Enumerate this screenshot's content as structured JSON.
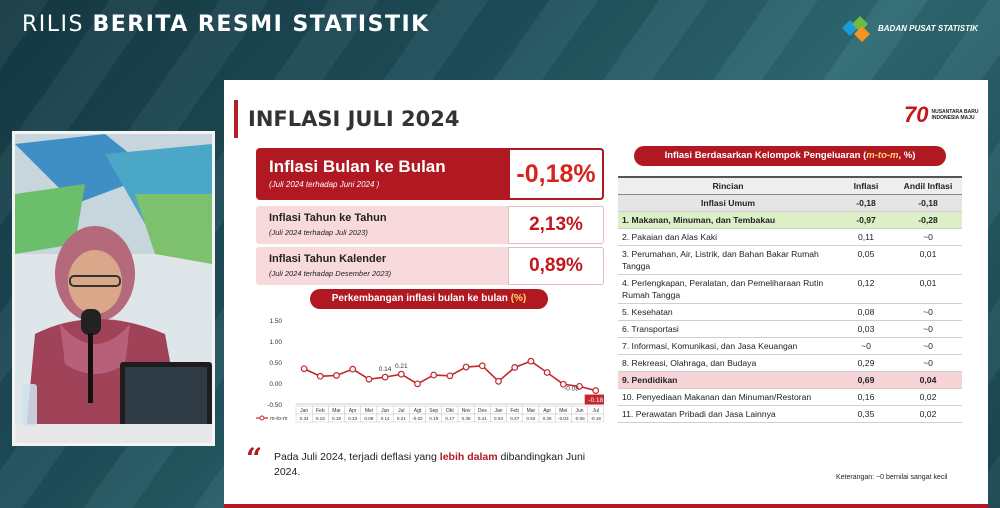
{
  "header": {
    "headline_light": "RILIS",
    "headline_bold": "BERITA RESMI STATISTIK",
    "agency": "BADAN PUSAT STATISTIK"
  },
  "slide": {
    "title": "INFLASI JULI 2024",
    "logo_number": "70",
    "logo_line1": "NUSANTARA BARU",
    "logo_line2": "INDONESIA MAJU",
    "mtom": {
      "title": "Inflasi Bulan ke Bulan",
      "subtitle": "(Juli 2024 terhadap Juni 2024 )",
      "value": "-0,18%"
    },
    "yony": {
      "title": "Inflasi Tahun ke Tahun",
      "subtitle": "(Juli 2024 terhadap Juli 2023)",
      "value": "2,13%"
    },
    "ytd": {
      "title": "Inflasi Tahun Kalender",
      "subtitle": "(Juli 2024 terhadap Desember 2023)",
      "value": "0,89%"
    },
    "chart_title_main": "Perkembangan inflasi bulan ke bulan",
    "chart_title_unit": "(%)",
    "note_pre": "Pada Juli 2024, terjadi deflasi yang ",
    "note_hl": "lebih dalam",
    "note_post": " dibandingkan Juni 2024.",
    "quote_mark": "“",
    "table_title_pre": "Inflasi Berdasarkan Kelompok Pengeluaran (",
    "table_title_hl": "m-to-m",
    "table_title_post": ", %)",
    "table_headers": [
      "Rincian",
      "Inflasi",
      "Andil Inflasi"
    ],
    "table_rows": [
      {
        "label": "Inflasi Umum",
        "inflasi": "-0,18",
        "andil": "-0,18",
        "style": "umum"
      },
      {
        "label": "1.  Makanan, Minuman, dan Tembakau",
        "inflasi": "-0,97",
        "andil": "-0,28",
        "style": "green"
      },
      {
        "label": "2.  Pakaian dan Alas Kaki",
        "inflasi": "0,11",
        "andil": "~0",
        "style": ""
      },
      {
        "label": "3.  Perumahan, Air, Listrik, dan Bahan Bakar Rumah Tangga",
        "inflasi": "0,05",
        "andil": "0,01",
        "style": ""
      },
      {
        "label": "4.  Perlengkapan, Peralatan, dan Pemeliharaan Rutin Rumah Tangga",
        "inflasi": "0,12",
        "andil": "0,01",
        "style": ""
      },
      {
        "label": "5.  Kesehatan",
        "inflasi": "0,08",
        "andil": "~0",
        "style": ""
      },
      {
        "label": "6.  Transportasi",
        "inflasi": "0,03",
        "andil": "~0",
        "style": ""
      },
      {
        "label": "7.  Informasi, Komunikasi, dan Jasa Keuangan",
        "inflasi": "~0",
        "andil": "~0",
        "style": ""
      },
      {
        "label": "8.  Rekreasi, Olahraga, dan Budaya",
        "inflasi": "0,29",
        "andil": "~0",
        "style": ""
      },
      {
        "label": "9.  Pendidikan",
        "inflasi": "0,69",
        "andil": "0,04",
        "style": "pink"
      },
      {
        "label": "10. Penyediaan Makanan dan Minuman/Restoran",
        "inflasi": "0,16",
        "andil": "0,02",
        "style": ""
      },
      {
        "label": "11. Perawatan Pribadi dan Jasa Lainnya",
        "inflasi": "0,35",
        "andil": "0,02",
        "style": ""
      }
    ],
    "footnote": "Keterangan: ~0 bernilai sangat kecil"
  },
  "chart_data": {
    "type": "line",
    "title": "Perkembangan inflasi bulan ke bulan (%)",
    "categories": [
      "Jan",
      "Feb",
      "Mar",
      "Apr",
      "Mei",
      "Jun",
      "Jul",
      "Agt",
      "Sep",
      "Okt",
      "Nov",
      "Des",
      "Jan",
      "Feb",
      "Mar",
      "Apr",
      "Mei",
      "Jun",
      "Jul"
    ],
    "series": [
      {
        "name": "m-to-m",
        "values": [
          0.34,
          0.16,
          0.18,
          0.33,
          0.09,
          0.14,
          0.21,
          -0.02,
          0.19,
          0.17,
          0.38,
          0.41,
          0.04,
          0.37,
          0.52,
          0.25,
          -0.03,
          -0.08,
          -0.18
        ]
      }
    ],
    "table_row": [
      "0.34",
      "0.16",
      "0.18",
      "0.33",
      "0.09",
      "0.14",
      "0.21",
      "-0.02",
      "0.19",
      "0.17",
      "0.38",
      "0.41",
      "0.04",
      "0.37",
      "0.52",
      "0.25",
      "-0.03",
      "-0.08",
      "-0.18"
    ],
    "labeled_points": {
      "5": "0.14",
      "6": "0.21",
      "17": "-0.08",
      "18": "-0.18"
    },
    "yticks": [
      "1.50",
      "1.00",
      "0.50",
      "0.00",
      "-0.50"
    ],
    "ylim": [
      -0.5,
      1.5
    ],
    "grid": false,
    "legend": "bottom-left",
    "color": "#c4262e"
  }
}
